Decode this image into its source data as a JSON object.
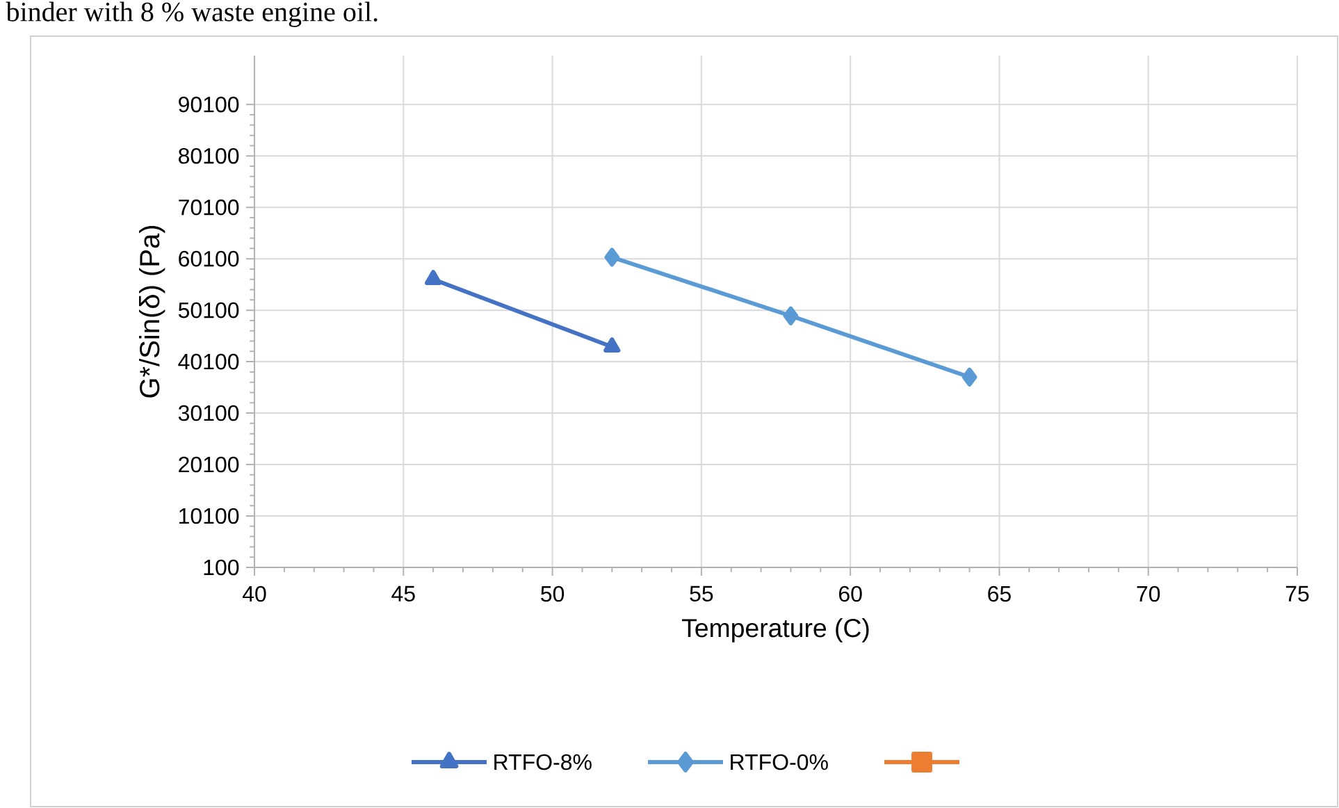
{
  "chart_data": {
    "type": "line",
    "xlabel": "Temperature (C)",
    "ylabel": "G*/Sin(δ) (Pa)",
    "annotations": [
      "binder with 8 % waste engine oil."
    ],
    "xlim": [
      40,
      75
    ],
    "xticks": [
      40,
      45,
      50,
      55,
      60,
      65,
      70,
      75
    ],
    "ylim": [
      100,
      99600
    ],
    "yticks": [
      100,
      10100,
      20100,
      30100,
      40100,
      50100,
      60100,
      70100,
      80100,
      90100
    ],
    "grid": true,
    "legend": "bottom",
    "series": [
      {
        "name": "RTFO-8%",
        "color": "#4472c4",
        "marker": "triangle",
        "x": [
          46,
          52
        ],
        "values": [
          56100,
          43000
        ]
      },
      {
        "name": "RTFO-0%",
        "color": "#5b9bd5",
        "marker": "diamond",
        "x": [
          52,
          58,
          64
        ],
        "values": [
          60400,
          49000,
          37100
        ]
      },
      {
        "color": "#ed7d31",
        "marker": "square"
      }
    ]
  }
}
